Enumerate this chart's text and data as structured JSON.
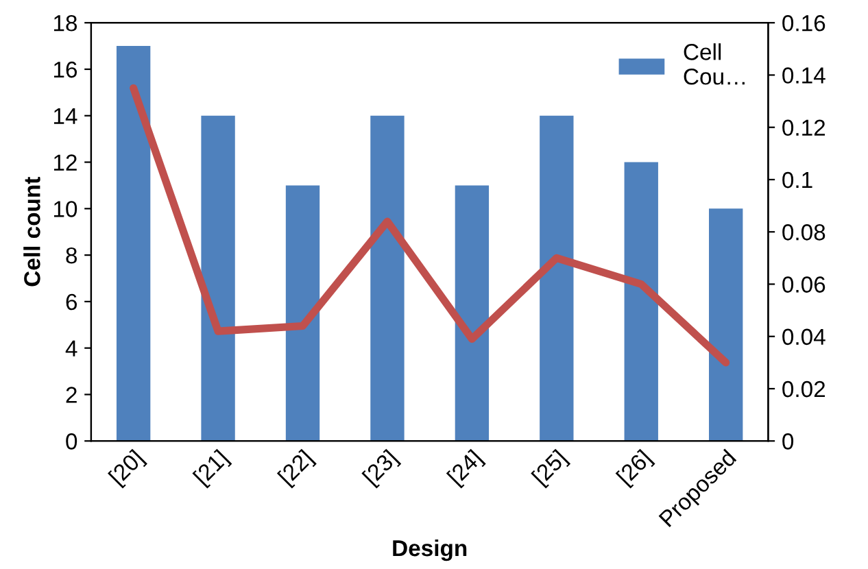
{
  "chart_data": {
    "type": "bar",
    "xlabel": "Design",
    "ylabel": "Cell count",
    "categories": [
      "[20]",
      "[21]",
      "[22]",
      "[23]",
      "[24]",
      "[25]",
      "[26]",
      "Proposed"
    ],
    "series": [
      {
        "name": "Cell Cou…",
        "color": "#4f81bd",
        "values": [
          17,
          14,
          11,
          14,
          11,
          14,
          12,
          10
        ]
      },
      {
        "type": "line",
        "axis": "y2",
        "color": "#c0504d",
        "values": [
          0.135,
          0.042,
          0.044,
          0.084,
          0.039,
          0.07,
          0.06,
          0.03
        ]
      }
    ],
    "ylim": [
      0,
      18
    ],
    "yticks": [
      0,
      2,
      4,
      6,
      8,
      10,
      12,
      14,
      16,
      18
    ],
    "y2lim": [
      0,
      0.16
    ],
    "y2ticks": [
      0,
      0.02,
      0.04,
      0.06,
      0.08,
      0.1,
      0.12,
      0.14,
      0.16
    ],
    "grid": false,
    "legend": "top right",
    "marker": "none",
    "line_style": "solid"
  }
}
